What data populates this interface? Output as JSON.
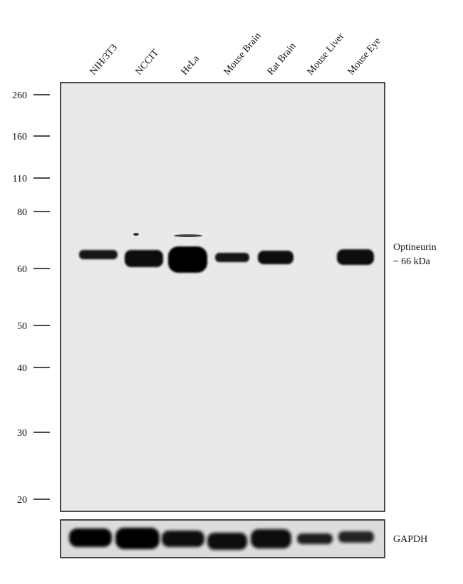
{
  "lanes": [
    "NIH/3T3",
    "NCCIT",
    "HeLa",
    "Mouse Brain",
    "Rat Brain",
    "Mouse Liver",
    "Mouse Eye"
  ],
  "markers": [
    "260",
    "160",
    "110",
    "80",
    "60",
    "50",
    "40",
    "30",
    "20"
  ],
  "band_label": [
    "Optineurin",
    "~ 66 kDa"
  ],
  "loading_control": "GAPDH"
}
